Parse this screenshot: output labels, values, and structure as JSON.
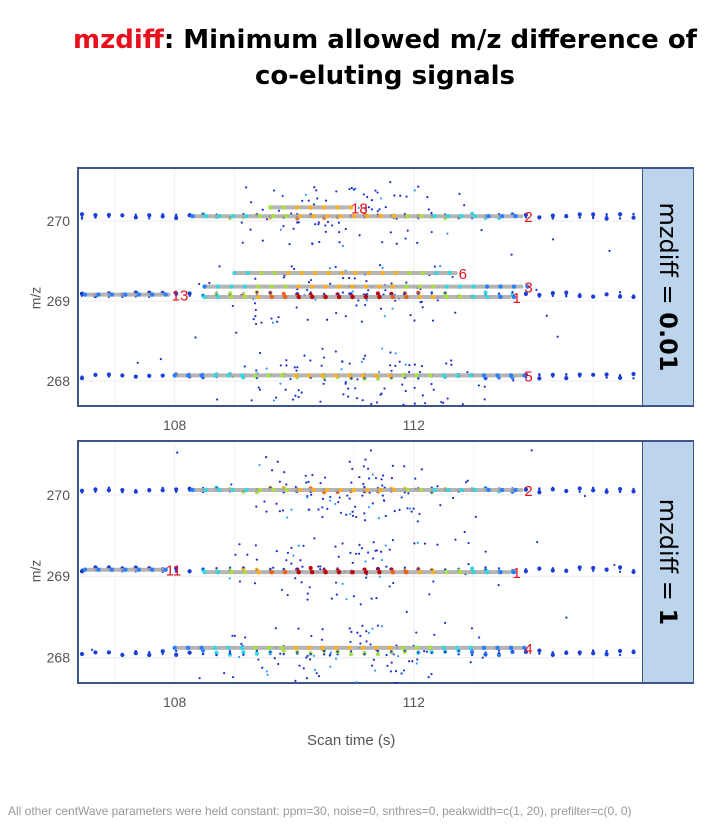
{
  "title": {
    "highlight": "mzdiff",
    "rest": ": Minimum allowed m/z difference of",
    "line2": "co-eluting signals"
  },
  "footnote": "All other centWave parameters were held constant: ppm=30, noise=0, snthres=0, peakwidth=c(1, 20),  prefilter=c(0, 0)",
  "colors": {
    "title_highlight": "#e8101c",
    "strip_bg": "#bcd5ed",
    "frame": "#3d5687",
    "peak_label": "#e8101c",
    "peak_bar": "#a9a9a9"
  },
  "chart_data": [
    {
      "type": "scatter",
      "strip_label_prefix": "mzdiff = ",
      "strip_label_value": "0.01",
      "xlabel": "",
      "ylabel": "m/z",
      "xlim": [
        106.4,
        115.8
      ],
      "ylim": [
        267.7,
        270.65
      ],
      "xticks": [
        108,
        112
      ],
      "yticks": [
        268,
        269,
        270
      ],
      "mz_traces": [
        270.06,
        269.08,
        268.06
      ],
      "peaks": [
        {
          "label": "18",
          "xmin": 109.6,
          "xmax": 110.9,
          "mz": 270.17
        },
        {
          "label": "2",
          "xmin": 108.3,
          "xmax": 113.8,
          "mz": 270.06
        },
        {
          "label": "6",
          "xmin": 109.0,
          "xmax": 112.7,
          "mz": 269.35
        },
        {
          "label": "3",
          "xmin": 108.5,
          "xmax": 113.8,
          "mz": 269.18
        },
        {
          "label": "13",
          "xmin": 106.5,
          "xmax": 107.9,
          "mz": 269.08
        },
        {
          "label": "1",
          "xmin": 108.5,
          "xmax": 113.6,
          "mz": 269.05
        },
        {
          "label": "5",
          "xmin": 108.0,
          "xmax": 113.8,
          "mz": 268.07
        }
      ]
    },
    {
      "type": "scatter",
      "strip_label_prefix": "mzdiff = ",
      "strip_label_value": "1",
      "xlabel": "Scan time (s)",
      "ylabel": "m/z",
      "xlim": [
        106.4,
        115.8
      ],
      "ylim": [
        267.7,
        270.65
      ],
      "xticks": [
        108,
        112
      ],
      "yticks": [
        268,
        269,
        270
      ],
      "mz_traces": [
        270.06,
        269.08,
        268.06
      ],
      "peaks": [
        {
          "label": "2",
          "xmin": 108.3,
          "xmax": 113.8,
          "mz": 270.06
        },
        {
          "label": "11",
          "xmin": 106.5,
          "xmax": 107.8,
          "mz": 269.08
        },
        {
          "label": "1",
          "xmin": 108.5,
          "xmax": 113.6,
          "mz": 269.05
        },
        {
          "label": "4",
          "xmin": 108.0,
          "xmax": 113.8,
          "mz": 268.12
        }
      ]
    }
  ]
}
